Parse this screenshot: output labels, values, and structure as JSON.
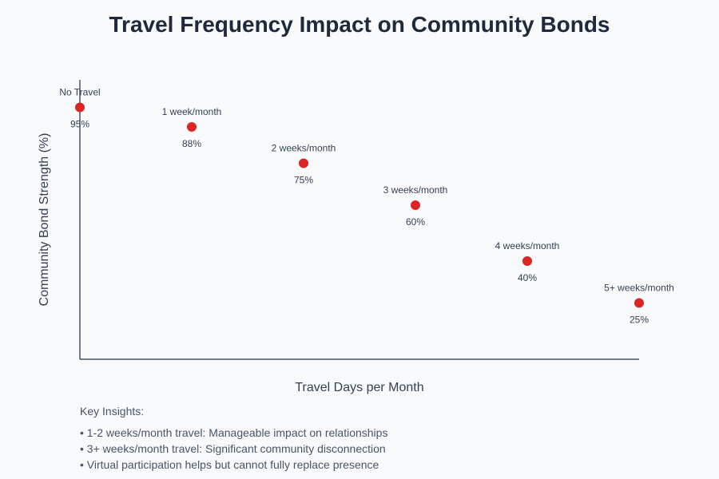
{
  "chart_data": {
    "type": "scatter",
    "title": "Travel Frequency Impact on Community Bonds",
    "xlabel": "Travel Days per Month",
    "ylabel": "Community Bond Strength (%)",
    "categories": [
      "No Travel",
      "1 week/month",
      "2 weeks/month",
      "3 weeks/month",
      "4 weeks/month",
      "5+ weeks/month"
    ],
    "values": [
      95,
      88,
      75,
      60,
      40,
      25
    ],
    "value_labels": [
      "95%",
      "88%",
      "75%",
      "60%",
      "40%",
      "25%"
    ],
    "ylim": [
      0,
      100
    ],
    "grid": false,
    "legend": "none",
    "colors": {
      "point": "#dc2626",
      "axis": "#475569"
    }
  },
  "insights": {
    "heading": "Key Insights:",
    "items": [
      "1-2 weeks/month travel: Manageable impact on relationships",
      "3+ weeks/month travel: Significant community disconnection",
      "Virtual participation helps but cannot fully replace presence"
    ]
  }
}
